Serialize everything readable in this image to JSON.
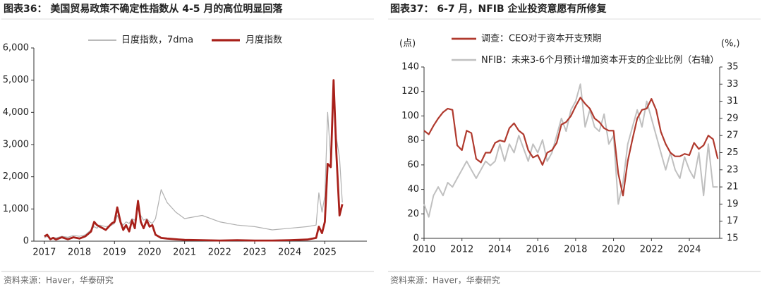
{
  "chart_data": [
    {
      "type": "line",
      "title": "图表36： 美国贸易政策不确定性指数从 4-5 月的高位明显回落",
      "source": "资料来源：Haver，华泰研究",
      "x": [
        2017.0,
        2017.08,
        2017.17,
        2017.25,
        2017.33,
        2017.5,
        2017.67,
        2017.83,
        2018.0,
        2018.17,
        2018.33,
        2018.42,
        2018.5,
        2018.58,
        2018.75,
        2018.92,
        2019.0,
        2019.08,
        2019.17,
        2019.25,
        2019.33,
        2019.42,
        2019.5,
        2019.58,
        2019.67,
        2019.75,
        2019.83,
        2019.92,
        2020.0,
        2020.08,
        2020.17,
        2020.33,
        2020.5,
        2020.75,
        2021.0,
        2021.5,
        2022.0,
        2022.5,
        2023.0,
        2023.5,
        2024.0,
        2024.5,
        2024.75,
        2024.83,
        2024.92,
        2025.0,
        2025.08,
        2025.17,
        2025.25,
        2025.33,
        2025.42,
        2025.5
      ],
      "series": [
        {
          "name": "日度指数，7dma",
          "color": "#b0b0b0",
          "width": 1.2,
          "values": [
            100,
            150,
            80,
            120,
            100,
            150,
            120,
            180,
            150,
            200,
            350,
            450,
            400,
            500,
            450,
            500,
            550,
            800,
            600,
            500,
            600,
            550,
            700,
            650,
            1000,
            800,
            650,
            700,
            600,
            550,
            700,
            1600,
            1200,
            900,
            700,
            800,
            600,
            500,
            450,
            350,
            400,
            450,
            500,
            1500,
            900,
            1400,
            4000,
            2500,
            4900,
            3200,
            2600,
            1200
          ]
        },
        {
          "name": "月度指数",
          "color": "#a8201a",
          "width": 2.8,
          "values": [
            150,
            200,
            60,
            100,
            50,
            120,
            60,
            120,
            80,
            150,
            300,
            600,
            500,
            450,
            350,
            550,
            600,
            1050,
            600,
            350,
            500,
            300,
            650,
            400,
            1250,
            600,
            400,
            650,
            450,
            500,
            200,
            100,
            80,
            60,
            40,
            30,
            20,
            30,
            20,
            20,
            30,
            50,
            100,
            450,
            250,
            600,
            2400,
            2300,
            5000,
            2700,
            800,
            1150
          ]
        }
      ],
      "xlim": [
        2016.7,
        2026.2
      ],
      "xticks": [
        2017,
        2018,
        2019,
        2020,
        2021,
        2022,
        2023,
        2024,
        2025
      ],
      "ylim": [
        0,
        6000
      ],
      "yticks": [
        0,
        {
          "value": 1000,
          "label": "1,000"
        },
        {
          "value": 2000,
          "label": "2,000"
        },
        {
          "value": 3000,
          "label": "3,000"
        },
        {
          "value": 4000,
          "label": "4,000"
        },
        {
          "value": 5000,
          "label": "5,000"
        },
        {
          "value": 6000,
          "label": "6,000"
        }
      ],
      "grid": false
    },
    {
      "type": "line",
      "title": "图表37： 6-7 月，NFIB 企业投资意愿有所修复",
      "source": "资料来源：Haver，华泰研究",
      "ylabel": "(点)",
      "y2label": "(%,)",
      "x": [
        2010.0,
        2010.25,
        2010.5,
        2010.75,
        2011.0,
        2011.25,
        2011.5,
        2011.75,
        2012.0,
        2012.25,
        2012.5,
        2012.75,
        2013.0,
        2013.25,
        2013.5,
        2013.75,
        2014.0,
        2014.25,
        2014.5,
        2014.75,
        2015.0,
        2015.25,
        2015.5,
        2015.75,
        2016.0,
        2016.25,
        2016.5,
        2016.75,
        2017.0,
        2017.25,
        2017.5,
        2017.75,
        2018.0,
        2018.25,
        2018.5,
        2018.75,
        2019.0,
        2019.25,
        2019.5,
        2019.75,
        2020.0,
        2020.25,
        2020.5,
        2020.75,
        2021.0,
        2021.25,
        2021.5,
        2021.75,
        2022.0,
        2022.25,
        2022.5,
        2022.75,
        2023.0,
        2023.25,
        2023.5,
        2023.75,
        2024.0,
        2024.25,
        2024.5,
        2024.75,
        2025.0,
        2025.25,
        2025.5
      ],
      "series": [
        {
          "name": "NFIB：未来3-6个月预计增加资本开支的企业比例（右轴）",
          "color": "#c0c0c0",
          "width": 2,
          "axis": "y2",
          "values": [
            19,
            17.5,
            20,
            21,
            20,
            21.5,
            21,
            22,
            23,
            24,
            23,
            22,
            23,
            24,
            23.5,
            24,
            26,
            24,
            26,
            25,
            27,
            25.5,
            24,
            26,
            25,
            26.5,
            24,
            25,
            27,
            29,
            27.5,
            30,
            31,
            33,
            28,
            30,
            28,
            27.5,
            29.5,
            26,
            27,
            19,
            21.5,
            26,
            28,
            30,
            28,
            31,
            29,
            27,
            25,
            23,
            25,
            23,
            22,
            24.5,
            23,
            22,
            25,
            20,
            26,
            21,
            21
          ]
        },
        {
          "name": "调查：CEO对于资本开支预期",
          "color": "#b03a2e",
          "width": 2.2,
          "values": [
            88,
            85,
            92,
            98,
            103,
            106,
            105,
            76,
            72,
            88,
            86,
            65,
            62,
            70,
            70,
            78,
            80,
            79,
            90,
            94,
            88,
            85,
            72,
            66,
            68,
            60,
            70,
            72,
            78,
            93,
            95,
            100,
            108,
            115,
            110,
            106,
            98,
            95,
            90,
            88,
            88,
            53,
            35,
            63,
            81,
            98,
            105,
            106,
            114,
            105,
            87,
            77,
            70,
            67,
            67,
            69,
            68,
            78,
            73,
            76,
            84,
            81,
            65
          ]
        }
      ],
      "xlim": [
        2010,
        2025.6
      ],
      "xticks": [
        2010,
        2012,
        2014,
        2016,
        2018,
        2020,
        2022,
        2024
      ],
      "ylim": [
        0,
        140
      ],
      "yticks": [
        0,
        20,
        40,
        60,
        80,
        100,
        120,
        140
      ],
      "y2lim": [
        15,
        35
      ],
      "y2ticks": [
        15,
        17,
        19,
        21,
        23,
        25,
        27,
        29,
        31,
        33,
        35
      ],
      "grid": false
    }
  ]
}
